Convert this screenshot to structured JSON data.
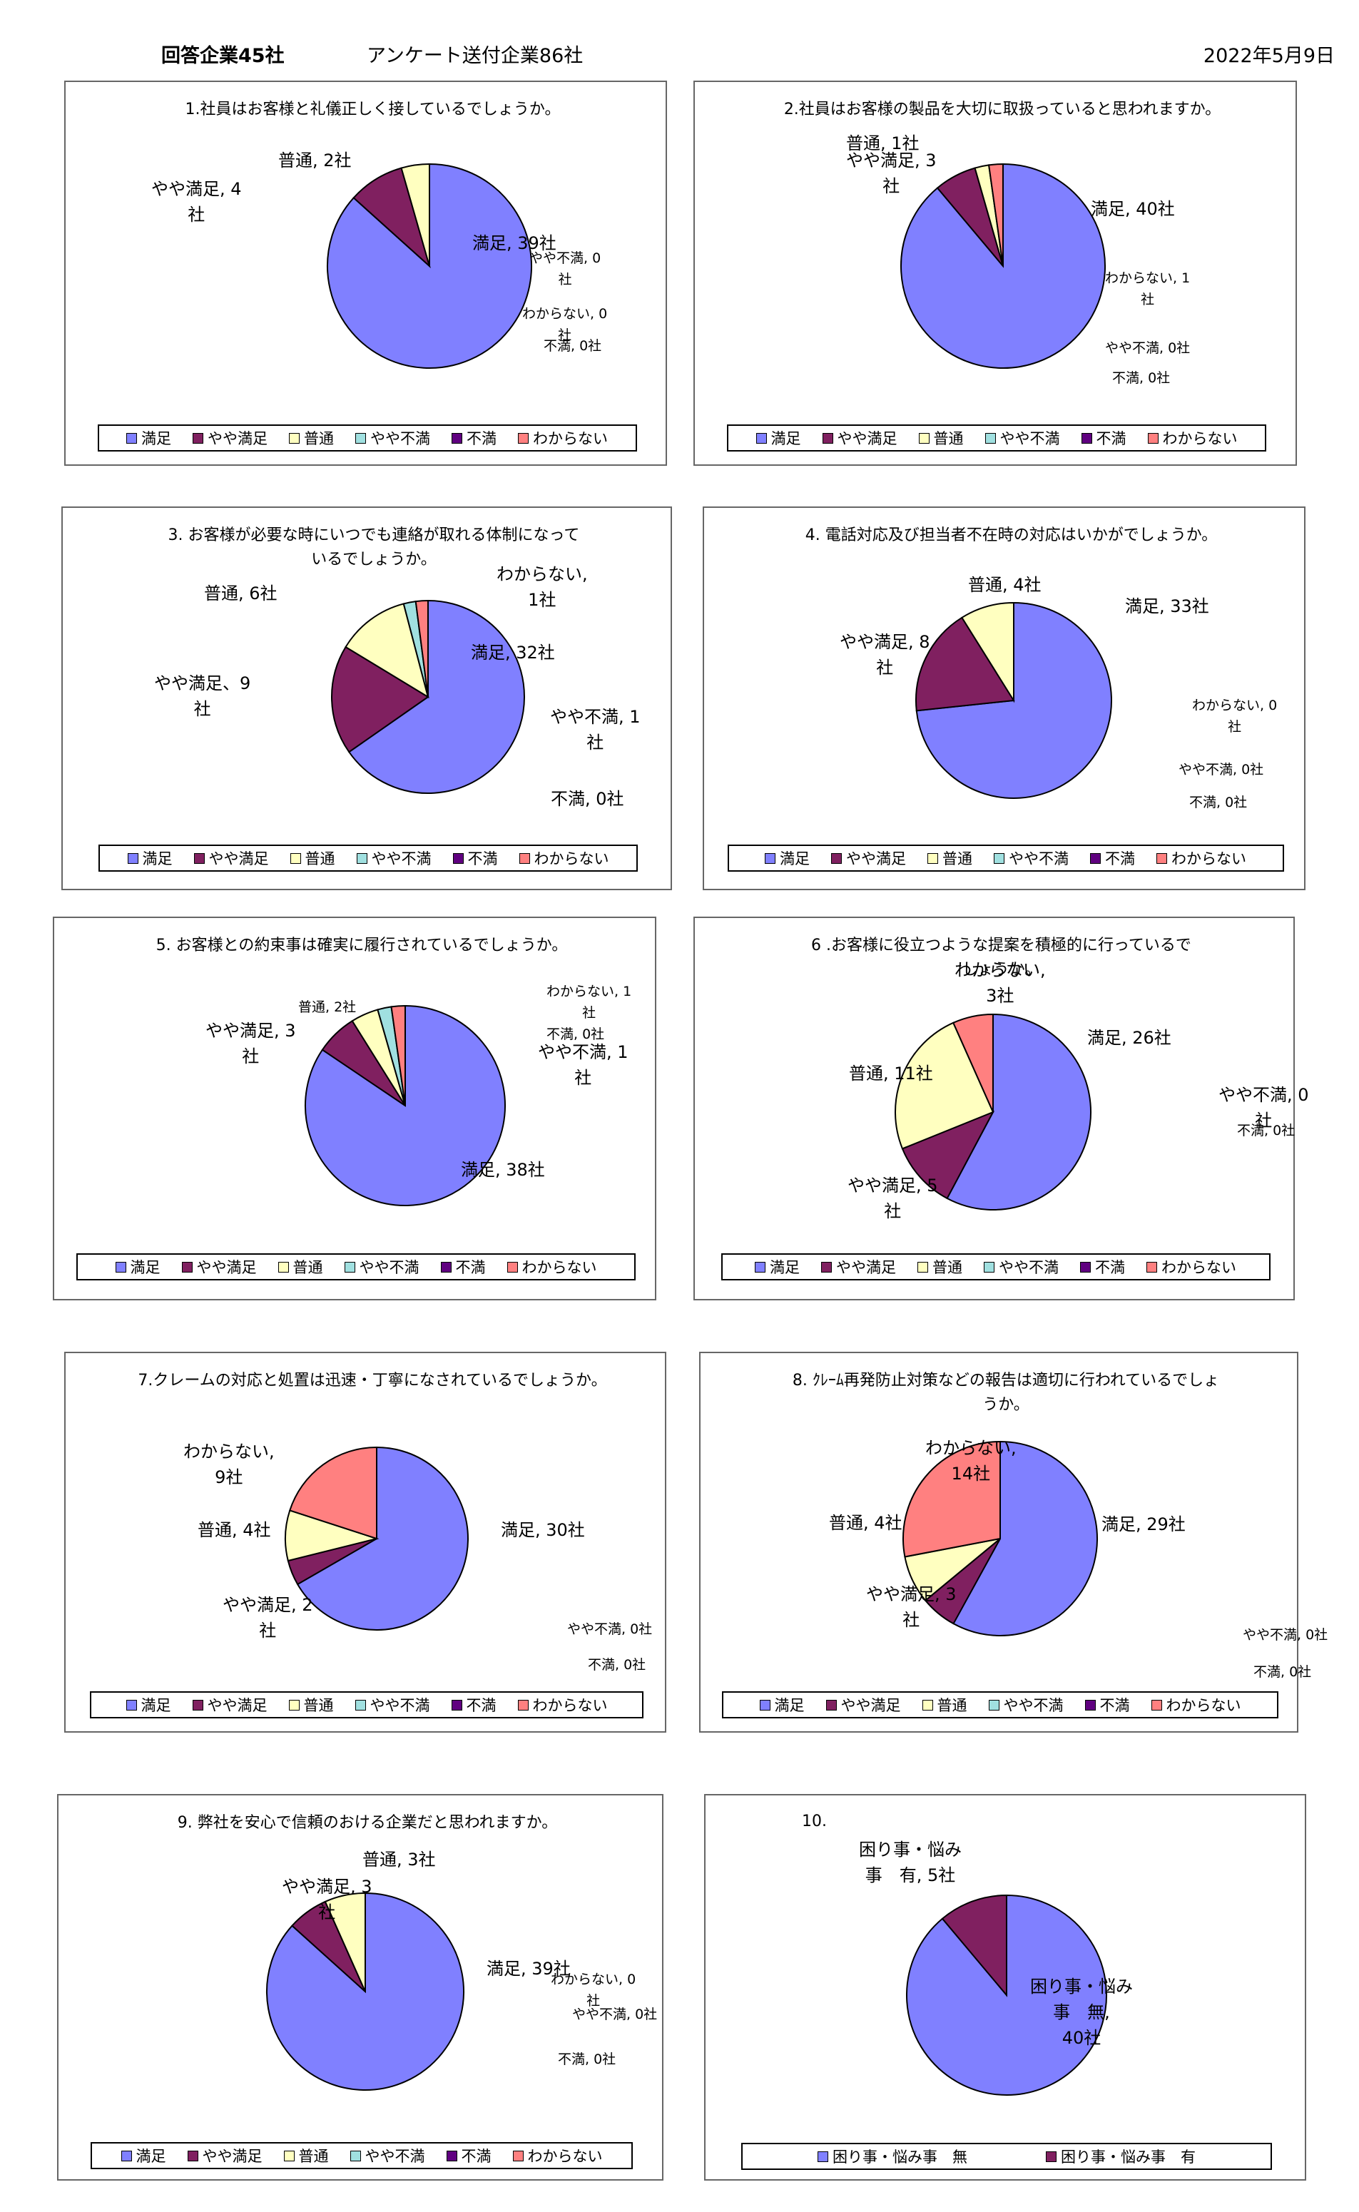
{
  "header": {
    "respondents": "回答企業45社",
    "sent": "アンケート送付企業86社",
    "date": "2022年5月9日"
  },
  "colors": {
    "満足": "#8080ff",
    "やや満足": "#802060",
    "普通": "#ffffc0",
    "やや不満": "#a0e0e0",
    "不満": "#600080",
    "わからない": "#ff8080",
    "困り事・悩み事　無": "#8080ff",
    "困り事・悩み事　有": "#802060"
  },
  "chart_data": [
    {
      "type": "pie",
      "title": "1.社員はお客様と礼儀正しく接しているでしょうか。",
      "slices": [
        {
          "name": "満足",
          "value": 39,
          "label": "満足, 39社"
        },
        {
          "name": "やや満足",
          "value": 4,
          "label": "やや満足, 4\n社"
        },
        {
          "name": "普通",
          "value": 2,
          "label": "普通, 2社"
        },
        {
          "name": "やや不満",
          "value": 0,
          "label": "やや不満, 0\n社"
        },
        {
          "name": "不満",
          "value": 0,
          "label": "不満, 0社"
        },
        {
          "name": "わからない",
          "value": 0,
          "label": "わからない, 0\n社"
        }
      ],
      "legend": [
        "満足",
        "やや満足",
        "普通",
        "やや不満",
        "不満",
        "わからない"
      ]
    },
    {
      "type": "pie",
      "title": "2.社員はお客様の製品を大切に取扱っていると思われますか。",
      "slices": [
        {
          "name": "満足",
          "value": 40,
          "label": "満足, 40社"
        },
        {
          "name": "やや満足",
          "value": 3,
          "label": "やや満足, 3\n社"
        },
        {
          "name": "普通",
          "value": 1,
          "label": "普通, 1社"
        },
        {
          "name": "やや不満",
          "value": 0,
          "label": "やや不満, 0社"
        },
        {
          "name": "不満",
          "value": 0,
          "label": "不満, 0社"
        },
        {
          "name": "わからない",
          "value": 1,
          "label": "わからない, 1\n社"
        }
      ],
      "legend": [
        "満足",
        "やや満足",
        "普通",
        "やや不満",
        "不満",
        "わからない"
      ]
    },
    {
      "type": "pie",
      "title": "3. お客様が必要な時にいつでも連絡が取れる体制になって\nいるでしょうか。",
      "slices": [
        {
          "name": "満足",
          "value": 32,
          "label": "満足, 32社"
        },
        {
          "name": "やや満足",
          "value": 9,
          "label": "やや満足、9\n社"
        },
        {
          "name": "普通",
          "value": 6,
          "label": "普通, 6社"
        },
        {
          "name": "やや不満",
          "value": 1,
          "label": "やや不満, 1\n社"
        },
        {
          "name": "不満",
          "value": 0,
          "label": "不満, 0社"
        },
        {
          "name": "わからない",
          "value": 1,
          "label": "わからない,\n1社"
        }
      ],
      "legend": [
        "満足",
        "やや満足",
        "普通",
        "やや不満",
        "不満",
        "わからない"
      ]
    },
    {
      "type": "pie",
      "title": "4. 電話対応及び担当者不在時の対応はいかがでしょうか。",
      "slices": [
        {
          "name": "満足",
          "value": 33,
          "label": "満足, 33社"
        },
        {
          "name": "やや満足",
          "value": 8,
          "label": "やや満足, 8\n社"
        },
        {
          "name": "普通",
          "value": 4,
          "label": "普通, 4社"
        },
        {
          "name": "やや不満",
          "value": 0,
          "label": "やや不満, 0社"
        },
        {
          "name": "不満",
          "value": 0,
          "label": "不満, 0社"
        },
        {
          "name": "わからない",
          "value": 0,
          "label": "わからない, 0\n社"
        }
      ],
      "legend": [
        "満足",
        "やや満足",
        "普通",
        "やや不満",
        "不満",
        "わからない"
      ]
    },
    {
      "type": "pie",
      "title": "5. お客様との約束事は確実に履行されているでしょうか。",
      "slices": [
        {
          "name": "満足",
          "value": 38,
          "label": "満足, 38社"
        },
        {
          "name": "やや満足",
          "value": 3,
          "label": "やや満足, 3\n社"
        },
        {
          "name": "普通",
          "value": 2,
          "label": "普通, 2社"
        },
        {
          "name": "やや不満",
          "value": 1,
          "label": "やや不満, 1\n社"
        },
        {
          "name": "不満",
          "value": 0,
          "label": "不満, 0社"
        },
        {
          "name": "わからない",
          "value": 1,
          "label": "わからない, 1\n社"
        }
      ],
      "legend": [
        "満足",
        "やや満足",
        "普通",
        "やや不満",
        "不満",
        "わからない"
      ]
    },
    {
      "type": "pie",
      "title": "6 .お客様に役立つような提案を積極的に行っているで\nしょうか。",
      "slices": [
        {
          "name": "満足",
          "value": 26,
          "label": "満足, 26社"
        },
        {
          "name": "やや満足",
          "value": 5,
          "label": "やや満足, 5\n社"
        },
        {
          "name": "普通",
          "value": 11,
          "label": "普通, 11社"
        },
        {
          "name": "やや不満",
          "value": 0,
          "label": "やや不満, 0\n社"
        },
        {
          "name": "不満",
          "value": 0,
          "label": "不満, 0社"
        },
        {
          "name": "わからない",
          "value": 3,
          "label": "わからない,\n3社"
        }
      ],
      "legend": [
        "満足",
        "やや満足",
        "普通",
        "やや不満",
        "不満",
        "わからない"
      ]
    },
    {
      "type": "pie",
      "title": "7.クレームの対応と処置は迅速・丁寧になされているでしょうか。",
      "slices": [
        {
          "name": "満足",
          "value": 30,
          "label": "満足, 30社"
        },
        {
          "name": "やや満足",
          "value": 2,
          "label": "やや満足, 2\n社"
        },
        {
          "name": "普通",
          "value": 4,
          "label": "普通, 4社"
        },
        {
          "name": "やや不満",
          "value": 0,
          "label": "やや不満, 0社"
        },
        {
          "name": "不満",
          "value": 0,
          "label": "不満, 0社"
        },
        {
          "name": "わからない",
          "value": 9,
          "label": "わからない,\n9社"
        }
      ],
      "legend": [
        "満足",
        "やや満足",
        "普通",
        "やや不満",
        "不満",
        "わからない"
      ]
    },
    {
      "type": "pie",
      "title": "8. ｸﾚｰﾑ再発防止対策などの報告は適切に行われているでしょ\nうか。",
      "slices": [
        {
          "name": "満足",
          "value": 29,
          "label": "満足, 29社"
        },
        {
          "name": "やや満足",
          "value": 3,
          "label": "やや満足, 3\n社"
        },
        {
          "name": "普通",
          "value": 4,
          "label": "普通, 4社"
        },
        {
          "name": "やや不満",
          "value": 0,
          "label": "やや不満, 0社"
        },
        {
          "name": "不満",
          "value": 0,
          "label": "不満, 0社"
        },
        {
          "name": "わからない",
          "value": 14,
          "label": "わからない,\n14社"
        }
      ],
      "legend": [
        "満足",
        "やや満足",
        "普通",
        "やや不満",
        "不満",
        "わからない"
      ]
    },
    {
      "type": "pie",
      "title": "9. 弊社を安心で信頼のおける企業だと思われますか。",
      "slices": [
        {
          "name": "満足",
          "value": 39,
          "label": "満足, 39社"
        },
        {
          "name": "やや満足",
          "value": 3,
          "label": "やや満足, 3\n社"
        },
        {
          "name": "普通",
          "value": 3,
          "label": "普通, 3社"
        },
        {
          "name": "やや不満",
          "value": 0,
          "label": "やや不満, 0社"
        },
        {
          "name": "不満",
          "value": 0,
          "label": "不満, 0社"
        },
        {
          "name": "わからない",
          "value": 0,
          "label": "わからない, 0\n社"
        }
      ],
      "legend": [
        "満足",
        "やや満足",
        "普通",
        "やや不満",
        "不満",
        "わからない"
      ]
    },
    {
      "type": "pie",
      "title": "10.",
      "slices": [
        {
          "name": "困り事・悩み事　無",
          "value": 40,
          "label": "困り事・悩み\n事　無,\n40社"
        },
        {
          "name": "困り事・悩み事　有",
          "value": 5,
          "label": "困り事・悩み\n事　有, 5社"
        }
      ],
      "legend": [
        "困り事・悩み事　無",
        "困り事・悩み事　有"
      ]
    }
  ]
}
